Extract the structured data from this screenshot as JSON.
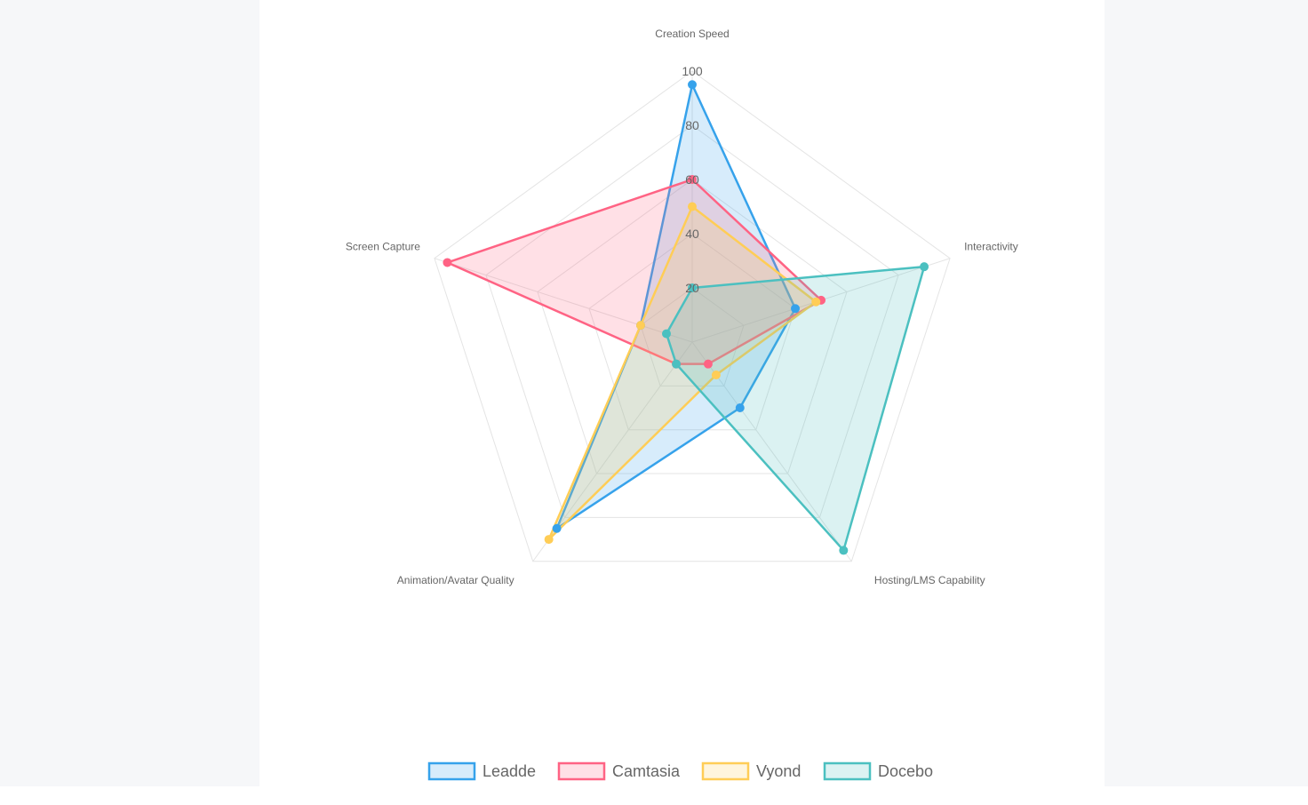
{
  "chart_data": {
    "type": "radar",
    "title": "",
    "axes": [
      "Creation Speed",
      "Interactivity",
      "Hosting/LMS Capability",
      "Animation/Avatar Quality",
      "Screen Capture"
    ],
    "range": [
      0,
      100
    ],
    "ticks": [
      20,
      40,
      60,
      80,
      100
    ],
    "grid": true,
    "legend_position": "bottom",
    "series": [
      {
        "name": "Leadde",
        "values": [
          95,
          40,
          30,
          85,
          20
        ],
        "color": "#36a2eb",
        "fill": "rgba(54,162,235,0.2)"
      },
      {
        "name": "Camtasia",
        "values": [
          60,
          50,
          10,
          10,
          95
        ],
        "color": "#ff6384",
        "fill": "rgba(255,99,132,0.2)"
      },
      {
        "name": "Vyond",
        "values": [
          50,
          48,
          15,
          90,
          20
        ],
        "color": "#ffcd56",
        "fill": "rgba(255,205,86,0.2)"
      },
      {
        "name": "Docebo",
        "values": [
          20,
          90,
          95,
          10,
          10
        ],
        "color": "#4bc0c0",
        "fill": "rgba(75,192,192,0.2)"
      }
    ]
  }
}
